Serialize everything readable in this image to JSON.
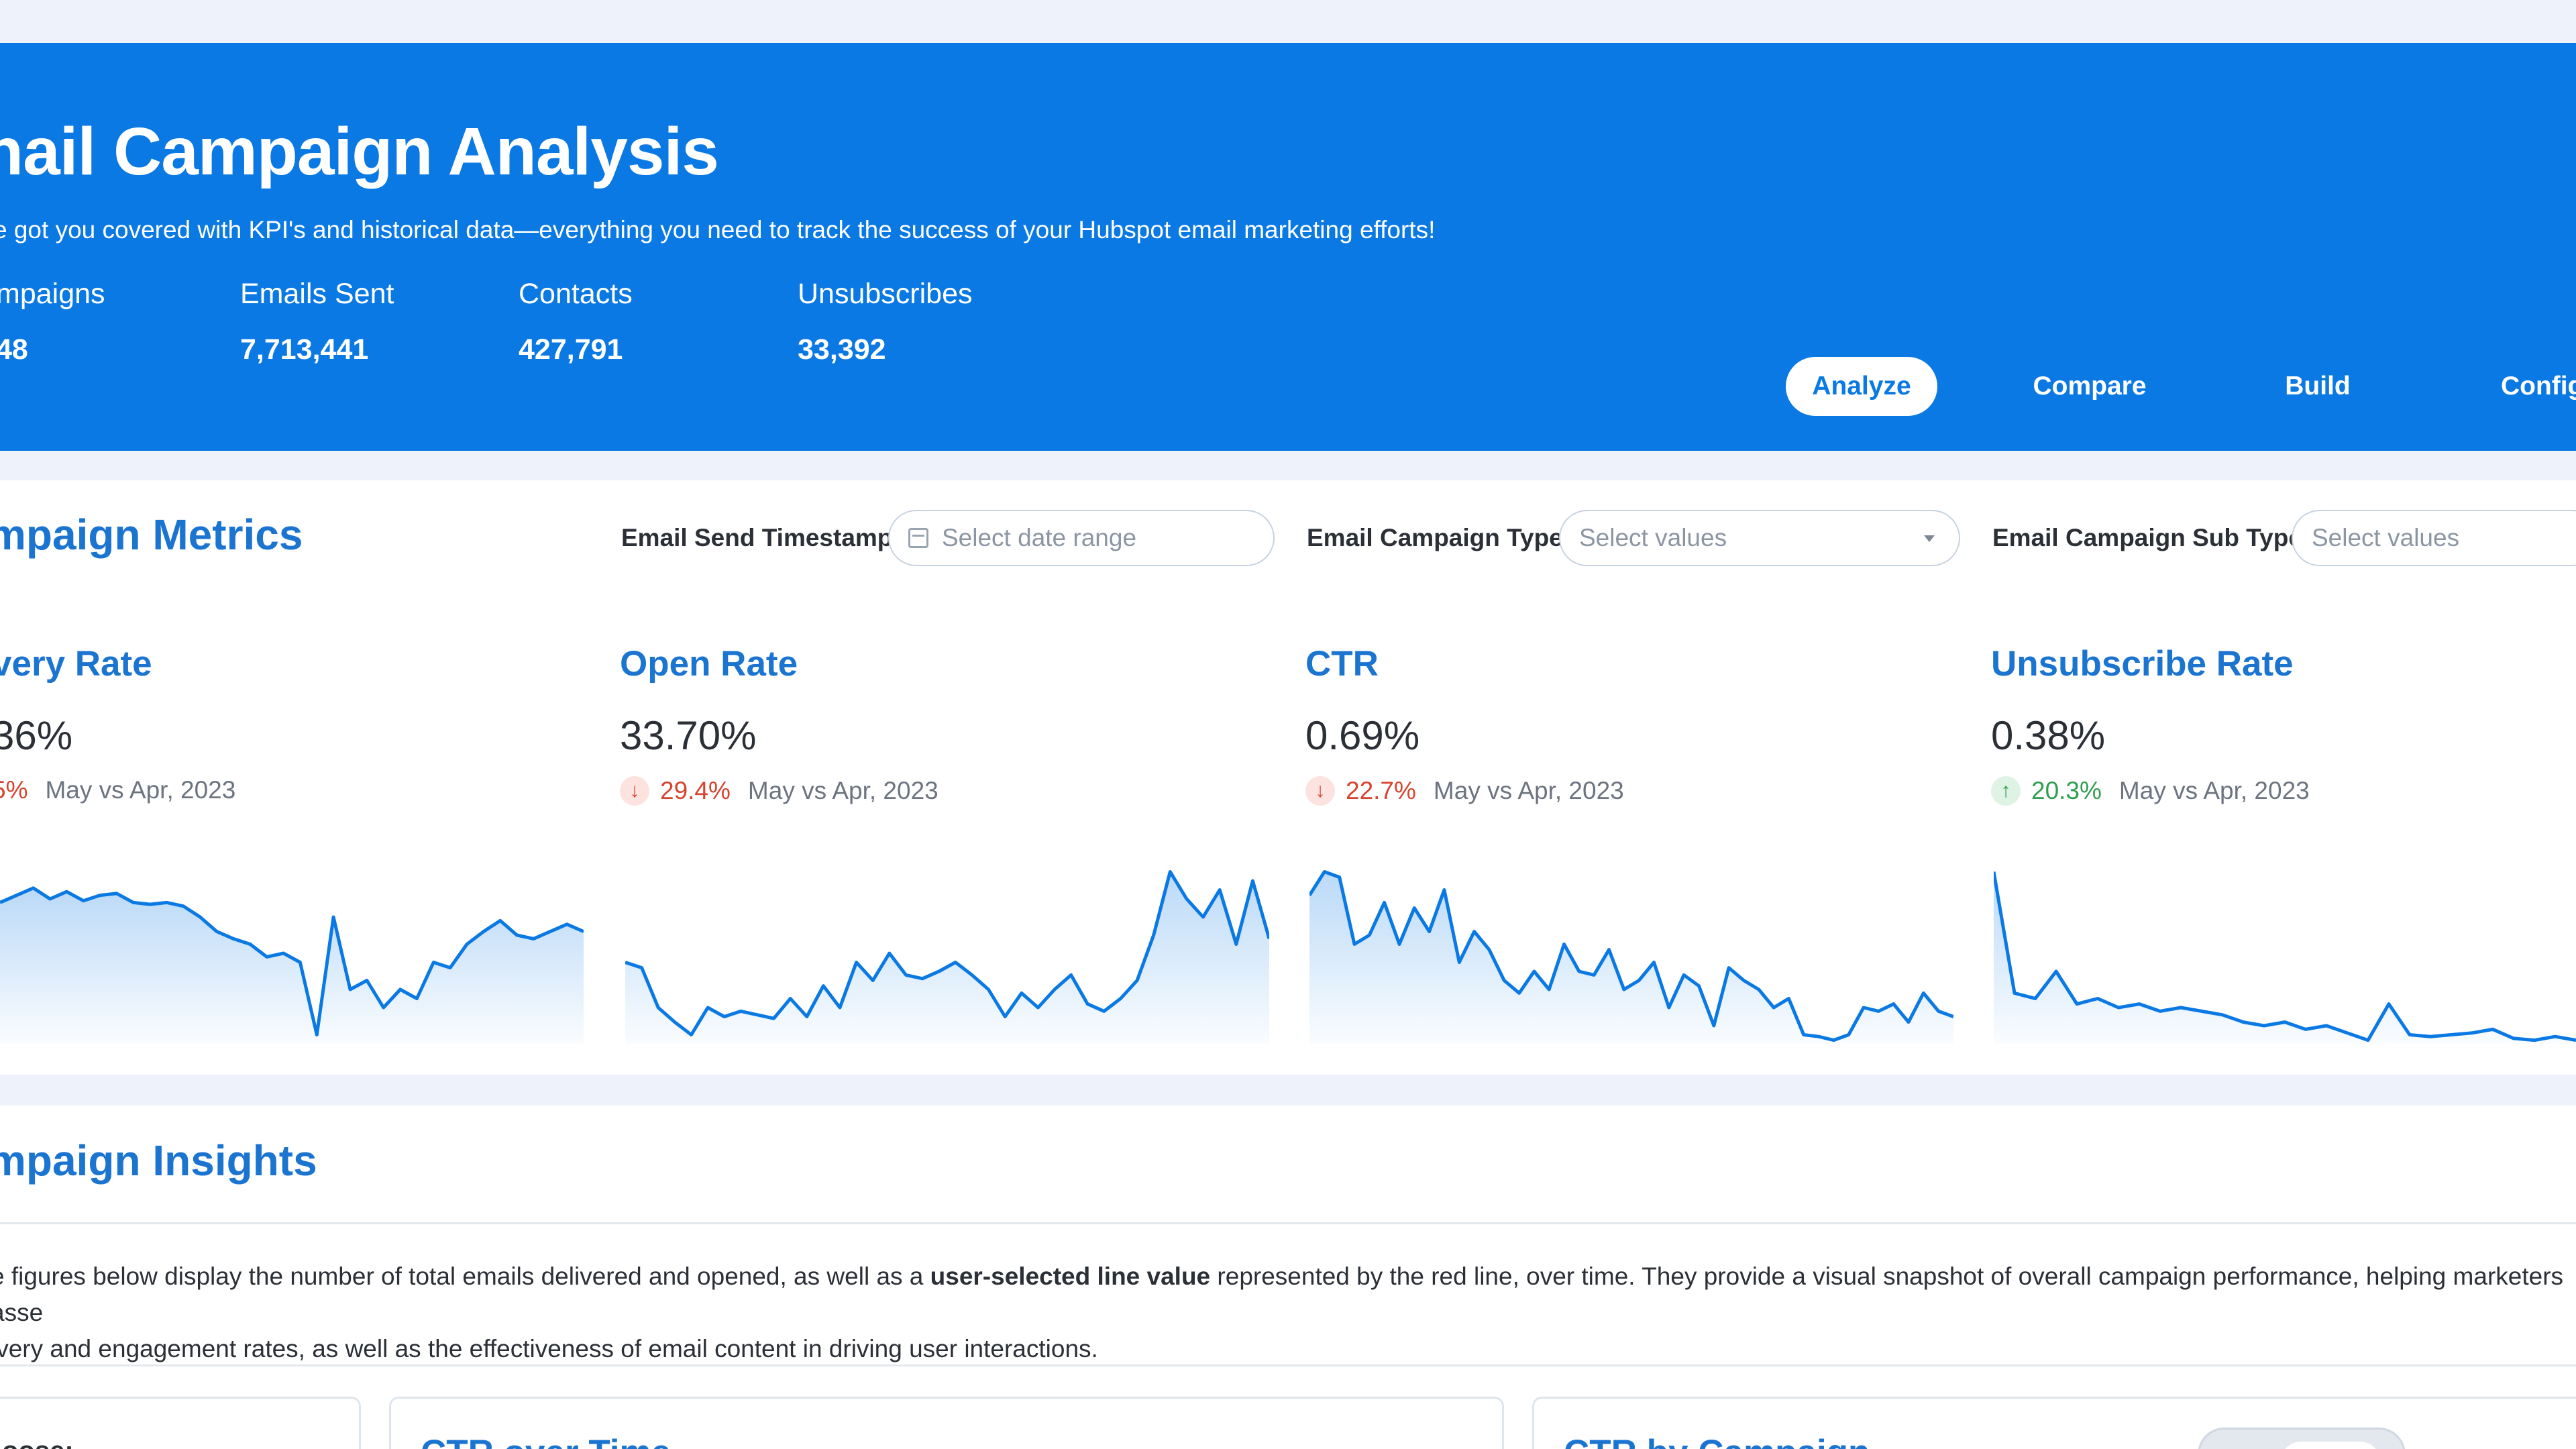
{
  "hero": {
    "title": "nail Campaign Analysis",
    "subtitle": "e got you covered with KPI's and historical data—everything you need to track the success of your Hubspot email marketing efforts!",
    "stats": [
      {
        "label": "mpaigns",
        "value": "48"
      },
      {
        "label": "Emails Sent",
        "value": "7,713,441"
      },
      {
        "label": "Contacts",
        "value": "427,791"
      },
      {
        "label": "Unsubscribes",
        "value": "33,392"
      }
    ],
    "nav": {
      "analyze": "Analyze",
      "compare": "Compare",
      "build": "Build",
      "configure": "Config"
    }
  },
  "metrics": {
    "title": "mpaign Metrics",
    "filters": {
      "timestamp_label": "Email Send Timestamp",
      "timestamp_placeholder": "Select date range",
      "type_label": "Email Campaign Type",
      "type_placeholder": "Select values",
      "subtype_label": "Email Campaign Sub Type",
      "subtype_placeholder": "Select values"
    },
    "kpis": [
      {
        "title": "very Rate",
        "value": "36%",
        "delta": "5%",
        "direction": "down",
        "period": "May vs Apr, 2023",
        "series": [
          0.78,
          0.82,
          0.86,
          0.8,
          0.84,
          0.79,
          0.82,
          0.83,
          0.78,
          0.77,
          0.78,
          0.76,
          0.7,
          0.62,
          0.58,
          0.55,
          0.48,
          0.5,
          0.45,
          0.05,
          0.7,
          0.3,
          0.35,
          0.2,
          0.3,
          0.25,
          0.45,
          0.42,
          0.55,
          0.62,
          0.68,
          0.6,
          0.58,
          0.62,
          0.66,
          0.62
        ]
      },
      {
        "title": "Open Rate",
        "value": "33.70%",
        "delta": "29.4%",
        "direction": "down",
        "period": "May vs Apr, 2023",
        "series": [
          0.45,
          0.42,
          0.2,
          0.12,
          0.05,
          0.2,
          0.15,
          0.18,
          0.16,
          0.14,
          0.25,
          0.15,
          0.32,
          0.2,
          0.45,
          0.35,
          0.5,
          0.38,
          0.36,
          0.4,
          0.45,
          0.38,
          0.3,
          0.15,
          0.28,
          0.2,
          0.3,
          0.38,
          0.22,
          0.18,
          0.25,
          0.35,
          0.6,
          0.95,
          0.8,
          0.7,
          0.85,
          0.55,
          0.9,
          0.58
        ]
      },
      {
        "title": "CTR",
        "value": "0.69%",
        "delta": "22.7%",
        "direction": "down",
        "period": "May vs Apr, 2023",
        "series": [
          0.82,
          0.95,
          0.92,
          0.55,
          0.6,
          0.78,
          0.55,
          0.75,
          0.62,
          0.85,
          0.45,
          0.62,
          0.52,
          0.35,
          0.28,
          0.4,
          0.3,
          0.55,
          0.4,
          0.38,
          0.52,
          0.3,
          0.35,
          0.45,
          0.2,
          0.38,
          0.32,
          0.1,
          0.42,
          0.35,
          0.3,
          0.2,
          0.25,
          0.05,
          0.04,
          0.02,
          0.05,
          0.2,
          0.18,
          0.22,
          0.12,
          0.28,
          0.18,
          0.15
        ]
      },
      {
        "title": "Unsubscribe Rate",
        "value": "0.38%",
        "delta": "20.3%",
        "direction": "up",
        "period": "May vs Apr, 2023",
        "series": [
          0.95,
          0.28,
          0.25,
          0.4,
          0.22,
          0.25,
          0.2,
          0.22,
          0.18,
          0.2,
          0.18,
          0.16,
          0.12,
          0.1,
          0.12,
          0.08,
          0.1,
          0.06,
          0.02,
          0.22,
          0.05,
          0.04,
          0.05,
          0.06,
          0.08,
          0.03,
          0.02,
          0.04,
          0.02
        ]
      }
    ]
  },
  "insights": {
    "title": "mpaign Insights",
    "desc_part1": "e figures below display the number of total emails delivered and opened, as well as a ",
    "desc_bold": "user-selected line value",
    "desc_part2": " represented by the red line, over time. They provide a visual snapshot of overall campaign performance, helping marketers asse",
    "desc_line2": "ivery and engagement rates, as well as the effectiveness of email content in driving user interactions.",
    "cards": [
      {
        "title": "oose:"
      },
      {
        "title": "CTR over Time"
      },
      {
        "title": "CTR by Campaign"
      }
    ]
  },
  "colors": {
    "brand_blue": "#0a79e3",
    "title_blue": "#1b75d0",
    "negative": "#d6432e",
    "positive": "#2f9e4f"
  },
  "icons": {
    "calendar": "calendar-icon",
    "dropdown": "chevron-down-icon",
    "down_arrow": "arrow-down-icon",
    "up_arrow": "arrow-up-icon"
  }
}
